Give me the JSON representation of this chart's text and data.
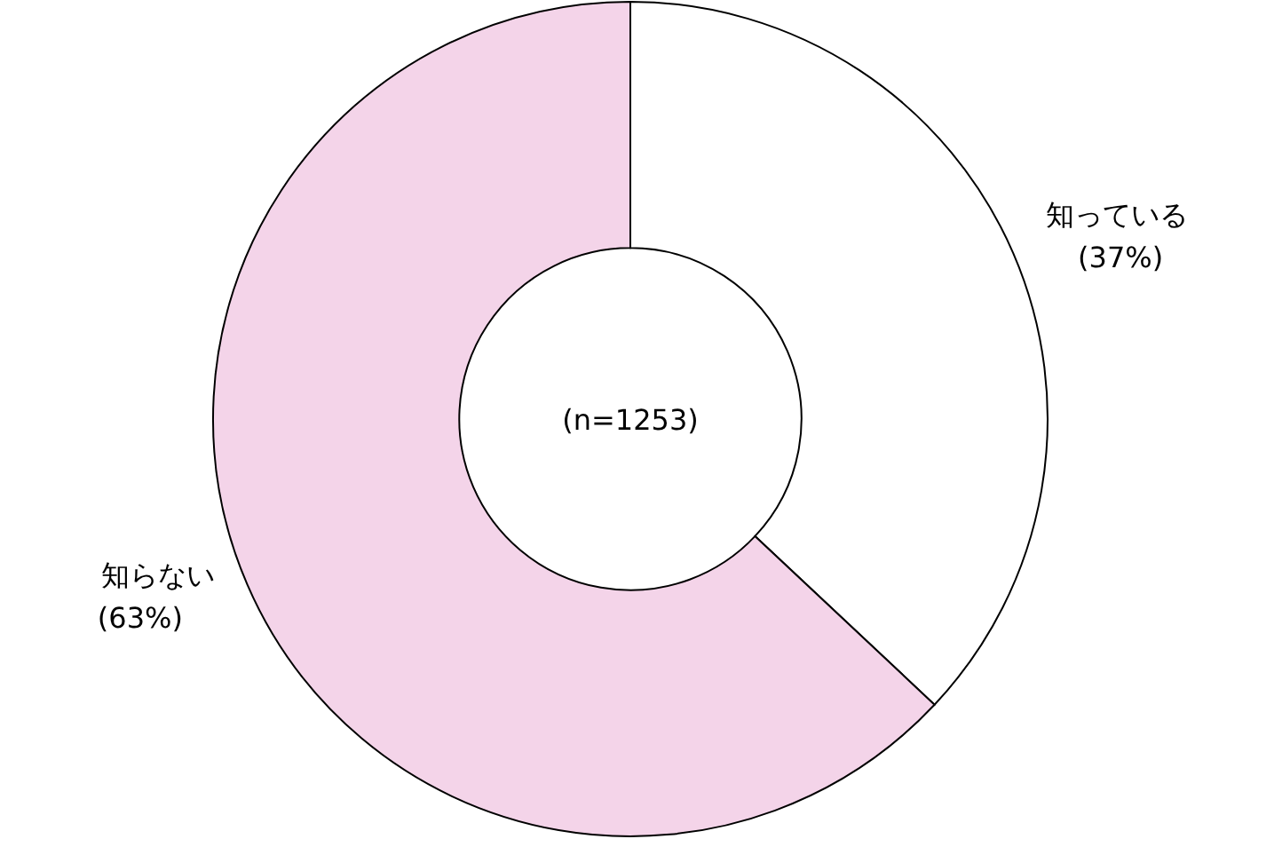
{
  "chart_data": {
    "type": "donut",
    "categories": [
      "知っている",
      "知らない"
    ],
    "values": [
      37,
      63
    ],
    "value_labels": [
      "(37%)",
      "(63%)"
    ],
    "colors": [
      "#ffffff",
      "#f4d4e9"
    ],
    "annotations": [
      "(n=1253)"
    ]
  }
}
